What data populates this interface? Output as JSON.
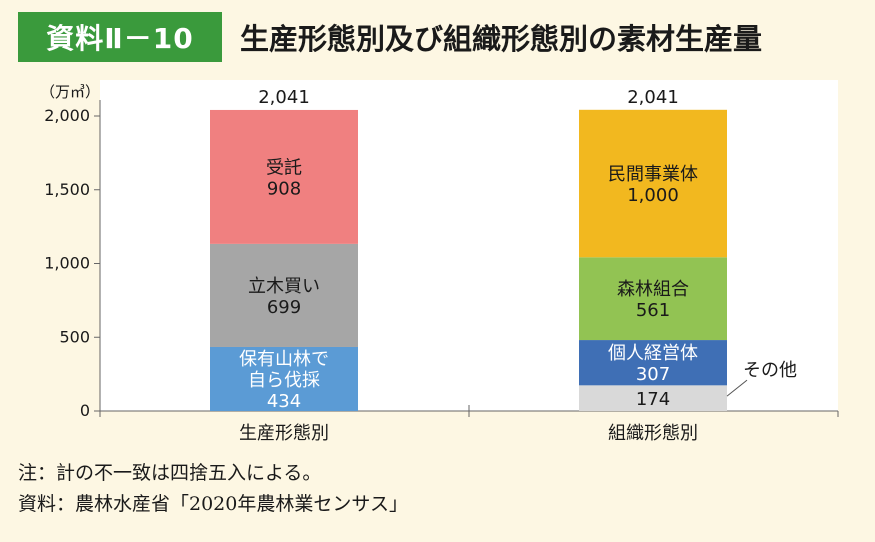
{
  "header": {
    "badge": "資料Ⅱ－10",
    "title": "生産形態別及び組織形態別の素材生産量"
  },
  "notes": {
    "note": "注：計の不一致は四捨五入による。",
    "source": "資料：農林水産省「2020年農林業センサス」"
  },
  "chart_data": {
    "type": "bar",
    "stacked": true,
    "title": "生産形態別及び組織形態別の素材生産量",
    "ylabel": "（万㎥）",
    "ylim": [
      0,
      2000
    ],
    "yticks": [
      0,
      500,
      1000,
      1500,
      2000
    ],
    "ytick_labels": [
      "0",
      "500",
      "1,000",
      "1,500",
      "2,000"
    ],
    "grid": false,
    "categories": [
      "生産形態別",
      "組織形態別"
    ],
    "totals": [
      2041,
      2041
    ],
    "total_labels": [
      "2,041",
      "2,041"
    ],
    "stacks": [
      [
        {
          "name": "保有山林で自ら伐採",
          "lines": [
            "保有山林で",
            "自ら伐採"
          ],
          "value": 434,
          "label": "434",
          "color": "#5b9bd5"
        },
        {
          "name": "立木買い",
          "lines": [
            "立木買い"
          ],
          "value": 699,
          "label": "699",
          "color": "#a6a6a6"
        },
        {
          "name": "受託",
          "lines": [
            "受託"
          ],
          "value": 908,
          "label": "908",
          "color": "#f08080"
        }
      ],
      [
        {
          "name": "その他",
          "lines": [],
          "value": 174,
          "label": "174",
          "color": "#d9d9d9",
          "callout": "その他"
        },
        {
          "name": "個人経営体",
          "lines": [
            "個人経営体"
          ],
          "value": 307,
          "label": "307",
          "color": "#3f6fb5"
        },
        {
          "name": "森林組合",
          "lines": [
            "森林組合"
          ],
          "value": 561,
          "label": "561",
          "color": "#92c353"
        },
        {
          "name": "民間事業体",
          "lines": [
            "民間事業体"
          ],
          "value": 1000,
          "label": "1,000",
          "color": "#f2b81f"
        }
      ]
    ]
  }
}
